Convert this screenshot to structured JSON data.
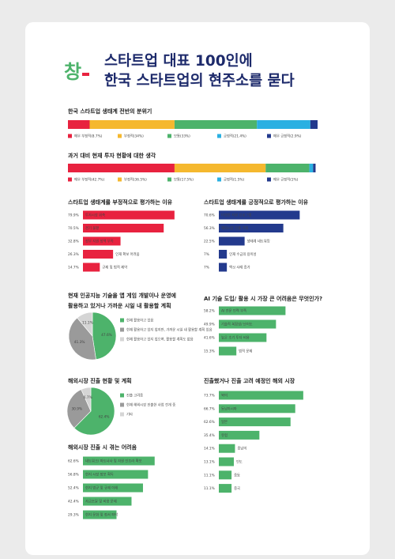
{
  "header": {
    "logo": "창",
    "title": [
      "스타트업 대표 100인에",
      "한국 스타트업의 현주소를 묻다"
    ]
  },
  "panels": [
    {
      "type": "stack",
      "title": "한국 스타트업 생태계 전반의 분위기",
      "items": [
        {
          "label": "매우 부정적(8.7%)",
          "value": 8.7,
          "color": "#e8223f"
        },
        {
          "label": "부정적(34%)",
          "value": 34,
          "color": "#f5b82e"
        },
        {
          "label": "보통(33%)",
          "value": 33,
          "color": "#4db36b"
        },
        {
          "label": "긍정적(21.4%)",
          "value": 21.4,
          "color": "#2ab0e2"
        },
        {
          "label": "매우 긍정적(2.9%)",
          "value": 2.9,
          "color": "#233a8d"
        }
      ]
    },
    {
      "type": "stack",
      "title": "과거 대비 현재 투자 현황에 대한 생각",
      "items": [
        {
          "label": "매우 부정적(42.7%)",
          "value": 42.7,
          "color": "#e8223f"
        },
        {
          "label": "부정적(36.5%)",
          "value": 36.5,
          "color": "#f5b82e"
        },
        {
          "label": "보통(17.5%)",
          "value": 17.5,
          "color": "#4db36b"
        },
        {
          "label": "긍정적(1.5%)",
          "value": 1.5,
          "color": "#2ab0e2"
        },
        {
          "label": "매우 긍정적(1%)",
          "value": 1,
          "color": "#233a8d"
        }
      ]
    },
    {
      "type": "hbar",
      "title": "스타트업 생태계를 부정적으로 평가하는 이유",
      "color": "#e8223f",
      "items": [
        {
          "label": "투자시장 위축",
          "value": 79.9,
          "value_label": "79.9%"
        },
        {
          "label": "경기 불황",
          "value": 70.5,
          "value_label": "70.5%"
        },
        {
          "label": "정부 지원 정책 부족",
          "value": 32.8,
          "value_label": "32.8%"
        },
        {
          "label": "인재 확보 어려움",
          "value": 26.3,
          "value_label": "26.3%"
        },
        {
          "label": "규제 및 법적 제약",
          "value": 14.7,
          "value_label": "14.7%"
        }
      ]
    },
    {
      "type": "hbar",
      "title": "스타트업 생태계를 긍정적으로 평가하는 이유",
      "color": "#233a8d",
      "items": [
        {
          "label": "다양한 지원 프로그램",
          "value": 70.6,
          "value_label": "70.6%"
        },
        {
          "label": "해외시장 진출 기회",
          "value": 56.3,
          "value_label": "56.3%"
        },
        {
          "label": "생태계 네트워킹",
          "value": 22.5,
          "value_label": "22.5%"
        },
        {
          "label": "인재 수급의 용이성",
          "value": 7,
          "value_label": "7%"
        },
        {
          "label": "엑싯 사례 증가",
          "value": 7,
          "value_label": "7%"
        }
      ]
    },
    {
      "type": "pie",
      "title": [
        "현재 인공지능 기술을 앱 게임 개발이나 운영에",
        "활용하고 있거나 가까운 시일 내 활용할 계획"
      ],
      "items": [
        {
          "label": "현재 활용하고 있음",
          "value": 47.6,
          "value_label": "47.6%",
          "color": "#4db36b"
        },
        {
          "label": "현재 활용하고 있지 않지만, 가까운 시일 내 활용할 계획 있음",
          "value": 41.3,
          "value_label": "41.3%",
          "color": "#9a9a9a"
        },
        {
          "label": "현재 활용하고 있지 않으며, 활용할 계획도 없음",
          "value": 11.1,
          "value_label": "11.1%",
          "color": "#d5d5d5"
        }
      ]
    },
    {
      "type": "hbar",
      "title": "AI 기술 도입/ 활용 시 가장 큰 어려움은 무엇인가?",
      "color": "#4db36b",
      "items": [
        {
          "label": "AI 전문 인력 부족",
          "value": 58.2,
          "value_label": "58.2%"
        },
        {
          "label": "기술적 복잡성/ 난이도",
          "value": 49.9,
          "value_label": "49.9%"
        },
        {
          "label": "높은 초기 투자 비용",
          "value": 41.6,
          "value_label": "41.6%"
        },
        {
          "label": "법적 문제",
          "value": 15.3,
          "value_label": "15.3%"
        }
      ]
    },
    {
      "type": "pie",
      "title": "해외시장 진출 현황 및 계획",
      "items": [
        {
          "label": "진출 고려중",
          "value": 62.4,
          "value_label": "62.4%",
          "color": "#4db36b"
        },
        {
          "label": "현재 해외시장 진출한 사업 전개 중",
          "value": 30.9,
          "value_label": "30.9%",
          "color": "#9a9a9a"
        },
        {
          "label": "기타",
          "value": 6.7,
          "value_label": "6.7%",
          "color": "#d5d5d5"
        }
      ]
    },
    {
      "type": "hbar",
      "title": "해외시장 진출 시 겪는 어려움",
      "color": "#4db36b",
      "items": [
        {
          "label": "네트워크/ 파트너사 및 자원 인프라 확보",
          "value": 62.6,
          "value_label": "62.6%"
        },
        {
          "label": "현지 시장 정보 획득",
          "value": 56.8,
          "value_label": "56.8%"
        },
        {
          "label": "현지 법규 및 규제 이해",
          "value": 52.4,
          "value_label": "52.4%"
        },
        {
          "label": "자금조달 및 비용 문제",
          "value": 42.4,
          "value_label": "42.4%"
        },
        {
          "label": "현지 문화 및 정서 파악",
          "value": 29.3,
          "value_label": "29.3%"
        }
      ]
    },
    {
      "type": "hbar",
      "title": "진출했거나 진출 고려 예정인 해외 시장",
      "color": "#4db36b",
      "items": [
        {
          "label": "북미",
          "value": 73.7,
          "value_label": "73.7%"
        },
        {
          "label": "동남아시아",
          "value": 66.7,
          "value_label": "66.7%"
        },
        {
          "label": "일본",
          "value": 62.6,
          "value_label": "62.6%"
        },
        {
          "label": "유럽",
          "value": 35.4,
          "value_label": "35.4%"
        },
        {
          "label": "중남미",
          "value": 14.1,
          "value_label": "14.1%"
        },
        {
          "label": "인도",
          "value": 13.1,
          "value_label": "13.1%"
        },
        {
          "label": "중동",
          "value": 11.1,
          "value_label": "11.1%"
        },
        {
          "label": "중국",
          "value": 11.1,
          "value_label": "11.1%"
        }
      ]
    }
  ]
}
